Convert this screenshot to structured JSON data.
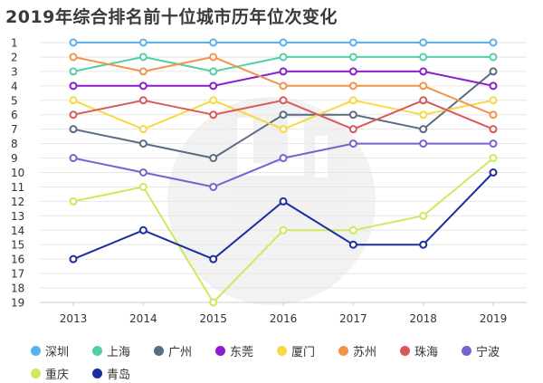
{
  "page": {
    "title": "2019年综合排名前十位城市历年位次变化"
  },
  "chart_data": {
    "type": "line",
    "title": "2019年综合排名前十位城市历年位次变化",
    "xlabel": "",
    "ylabel": "",
    "categories": [
      "2013",
      "2014",
      "2015",
      "2016",
      "2017",
      "2018",
      "2019"
    ],
    "y_ticks": [
      "1",
      "2",
      "3",
      "4",
      "5",
      "6",
      "7",
      "8",
      "9",
      "10",
      "11",
      "12",
      "13",
      "14",
      "15",
      "16",
      "17",
      "18",
      "19"
    ],
    "ylim": [
      1,
      19
    ],
    "y_inverted": true,
    "legend_position": "bottom",
    "series": [
      {
        "name": "深圳",
        "color": "#5ab1ef",
        "values": [
          1,
          1,
          1,
          1,
          1,
          1,
          1
        ]
      },
      {
        "name": "上海",
        "color": "#52cfa6",
        "values": [
          3,
          2,
          3,
          2,
          2,
          2,
          2
        ]
      },
      {
        "name": "广州",
        "color": "#5a6b82",
        "values": [
          7,
          8,
          9,
          6,
          6,
          7,
          3
        ]
      },
      {
        "name": "东莞",
        "color": "#8a1fd0",
        "values": [
          4,
          4,
          4,
          3,
          3,
          3,
          4
        ]
      },
      {
        "name": "厦门",
        "color": "#f7d944",
        "values": [
          5,
          7,
          5,
          7,
          5,
          6,
          5
        ]
      },
      {
        "name": "苏州",
        "color": "#f0954a",
        "values": [
          2,
          3,
          2,
          4,
          4,
          4,
          6
        ]
      },
      {
        "name": "珠海",
        "color": "#d9595a",
        "values": [
          6,
          5,
          6,
          5,
          7,
          5,
          7
        ]
      },
      {
        "name": "宁波",
        "color": "#7a62cc",
        "values": [
          9,
          10,
          11,
          9,
          8,
          8,
          8
        ]
      },
      {
        "name": "重庆",
        "color": "#cfe85c",
        "values": [
          12,
          11,
          19,
          14,
          14,
          13,
          9
        ]
      },
      {
        "name": "青岛",
        "color": "#1a2fa0",
        "values": [
          16,
          14,
          16,
          12,
          15,
          15,
          10
        ]
      }
    ]
  }
}
